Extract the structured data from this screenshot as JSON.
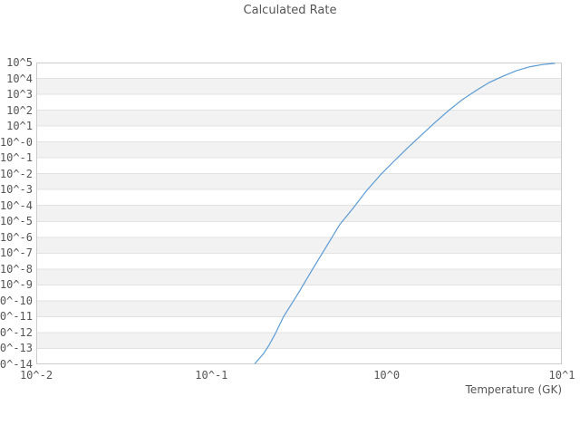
{
  "figure": {
    "title": "Calculated Rate"
  },
  "chart_data": {
    "type": "line",
    "title": "Calculated Rate",
    "xlabel": "Temperature (GK)",
    "ylabel": "",
    "x_scale": "log",
    "y_scale": "log",
    "x_log_range": [
      -2,
      1
    ],
    "y_log_range": [
      -14,
      5
    ],
    "grid": "horizontal-bands-per-decade",
    "legend": "none",
    "x_ticks": [
      {
        "label": "10^-2",
        "log": -2
      },
      {
        "label": "10^-1",
        "log": -1
      },
      {
        "label": "10^0",
        "log": 0
      },
      {
        "label": "10^1",
        "log": 1
      }
    ],
    "y_ticks": [
      {
        "label": "10^5",
        "log": 5
      },
      {
        "label": "10^4",
        "log": 4
      },
      {
        "label": "10^3",
        "log": 3
      },
      {
        "label": "10^2",
        "log": 2
      },
      {
        "label": "10^1",
        "log": 1
      },
      {
        "label": "10^-0",
        "log": 0
      },
      {
        "label": "10^-1",
        "log": -1
      },
      {
        "label": "10^-2",
        "log": -2
      },
      {
        "label": "10^-3",
        "log": -3
      },
      {
        "label": "10^-4",
        "log": -4
      },
      {
        "label": "10^-5",
        "log": -5
      },
      {
        "label": "10^-6",
        "log": -6
      },
      {
        "label": "10^-7",
        "log": -7
      },
      {
        "label": "10^-8",
        "log": -8
      },
      {
        "label": "10^-9",
        "log": -9
      },
      {
        "label": "10^-10",
        "log": -10
      },
      {
        "label": "10^-11",
        "log": -11
      },
      {
        "label": "10^-12",
        "log": -12
      },
      {
        "label": "10^-13",
        "log": -13
      },
      {
        "label": "10^-14",
        "log": -14
      }
    ],
    "series": [
      {
        "name": "calculated-rate",
        "color": "#5b9bd5",
        "points_T_GK_vs_log10_rate": [
          [
            0.177,
            -13.95
          ],
          [
            0.187,
            -13.65
          ],
          [
            0.199,
            -13.3
          ],
          [
            0.213,
            -12.8
          ],
          [
            0.232,
            -12.05
          ],
          [
            0.258,
            -11.0
          ],
          [
            0.316,
            -9.45
          ],
          [
            0.378,
            -8.0
          ],
          [
            0.452,
            -6.6
          ],
          [
            0.54,
            -5.2
          ],
          [
            0.64,
            -4.2
          ],
          [
            0.77,
            -3.05
          ],
          [
            0.92,
            -2.08
          ],
          [
            1.1,
            -1.22
          ],
          [
            1.32,
            -0.36
          ],
          [
            1.58,
            0.44
          ],
          [
            1.89,
            1.23
          ],
          [
            2.26,
            1.98
          ],
          [
            2.7,
            2.66
          ],
          [
            3.23,
            3.23
          ],
          [
            3.86,
            3.75
          ],
          [
            4.61,
            4.14
          ],
          [
            5.51,
            4.49
          ],
          [
            6.59,
            4.74
          ],
          [
            7.7,
            4.87
          ],
          [
            9.1,
            4.95
          ]
        ]
      }
    ],
    "colors": {
      "band": "#f2f2f2",
      "gridline": "#e2e2e2",
      "border": "#cccccc",
      "text": "#555555",
      "background": "#ffffff",
      "line": "#5b9bd5"
    }
  }
}
